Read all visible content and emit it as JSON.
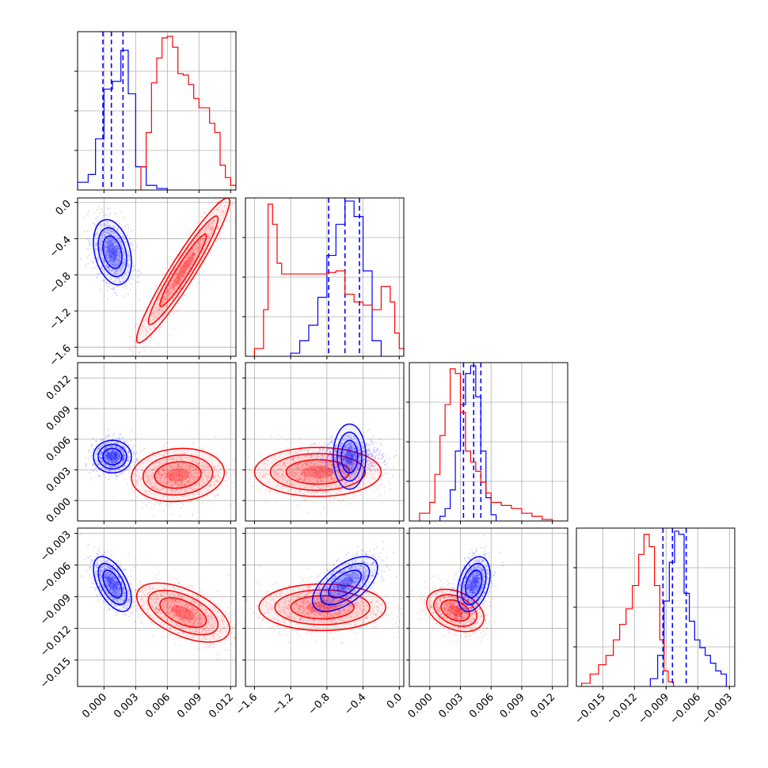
{
  "chart_data": {
    "type": "corner",
    "colors": {
      "series_a": "#0000ff",
      "series_b": "#ff0000"
    },
    "grid": true,
    "params": [
      {
        "range": [
          -0.0025,
          0.0125
        ],
        "ticks": [
          0.0,
          0.003,
          0.006,
          0.009,
          0.012
        ],
        "tick_labels": [
          "0.000",
          "0.003",
          "0.006",
          "0.009",
          "0.012"
        ]
      },
      {
        "range": [
          -1.7,
          0.05
        ],
        "ticks": [
          -1.6,
          -1.2,
          -0.8,
          -0.4,
          0.0
        ],
        "tick_labels": [
          "−1.6",
          "−1.2",
          "−0.8",
          "−0.4",
          "0.0"
        ]
      },
      {
        "range": [
          -0.002,
          0.0135
        ],
        "ticks": [
          0.0,
          0.003,
          0.006,
          0.009,
          0.012
        ],
        "tick_labels": [
          "0.000",
          "0.003",
          "0.006",
          "0.009",
          "0.012"
        ]
      },
      {
        "range": [
          -0.0175,
          -0.0025
        ],
        "ticks": [
          -0.015,
          -0.012,
          -0.009,
          -0.006,
          -0.003
        ],
        "tick_labels": [
          "−0.015",
          "−0.012",
          "−0.009",
          "−0.006",
          "−0.003"
        ]
      }
    ],
    "series": [
      {
        "color": "#0000ff",
        "quantiles": [
          [
            -0.0001,
            0.0007,
            0.0018
          ],
          [
            -0.78,
            -0.6,
            -0.44
          ],
          [
            0.0033,
            0.0043,
            0.005
          ],
          [
            -0.0093,
            -0.0084,
            -0.0071
          ]
        ],
        "hist_1d": [
          {
            "edges": [
              -0.0025,
              -0.0015,
              -0.0008,
              0.0,
              0.0008,
              0.0016,
              0.0023,
              0.003,
              0.004,
              0.005,
              0.006
            ],
            "counts": [
              5,
              10,
              33,
              65,
              70,
              90,
              62,
              15,
              3,
              1
            ]
          },
          {
            "edges": [
              -1.2,
              -1.1,
              -1.0,
              -0.9,
              -0.8,
              -0.7,
              -0.6,
              -0.5,
              -0.4,
              -0.3,
              -0.2
            ],
            "counts": [
              2,
              10,
              20,
              38,
              65,
              85,
              100,
              90,
              55,
              10
            ]
          },
          {
            "edges": [
              0.001,
              0.0015,
              0.002,
              0.0025,
              0.003,
              0.0035,
              0.004,
              0.0045,
              0.005,
              0.0055,
              0.006,
              0.0065
            ],
            "counts": [
              3,
              8,
              20,
              45,
              75,
              95,
              100,
              80,
              45,
              15,
              4
            ]
          },
          {
            "edges": [
              -0.0105,
              -0.0098,
              -0.0092,
              -0.0087,
              -0.0082,
              -0.0078,
              -0.0073,
              -0.0068,
              -0.0063,
              -0.0058,
              -0.0053,
              -0.0048,
              -0.0043,
              -0.0038,
              -0.0033
            ],
            "counts": [
              5,
              20,
              55,
              80,
              100,
              98,
              60,
              42,
              30,
              25,
              20,
              15,
              10,
              8
            ]
          }
        ],
        "hist_1d_ymax": [
          100,
          100,
          100,
          100
        ],
        "clouds_2d": [
          {
            "p": [
              0,
              1
            ],
            "center": [
              0.0008,
              -0.55
            ],
            "sd": [
              0.0009,
              0.18
            ],
            "rho": -0.3
          },
          {
            "p": [
              0,
              2
            ],
            "center": [
              0.0008,
              0.0043
            ],
            "sd": [
              0.0009,
              0.0008
            ],
            "rho": 0.0
          },
          {
            "p": [
              0,
              3
            ],
            "center": [
              0.0008,
              -0.0078
            ],
            "sd": [
              0.0009,
              0.0013
            ],
            "rho": -0.55
          },
          {
            "p": [
              1,
              2
            ],
            "center": [
              -0.55,
              0.0043
            ],
            "sd": [
              0.18,
              0.0008
            ],
            "rho": 0.0
          },
          {
            "p": [
              1,
              3
            ],
            "center": [
              -0.6,
              -0.0078
            ],
            "sd": [
              0.18,
              0.0013
            ],
            "rho": 0.6
          },
          {
            "p": [
              2,
              3
            ],
            "center": [
              0.0043,
              -0.0078
            ],
            "sd": [
              0.0008,
              0.0013
            ],
            "rho": 0.35
          }
        ]
      },
      {
        "color": "#ff0000",
        "quantiles": [],
        "hist_1d": [
          {
            "edges": [
              0.0035,
              0.004,
              0.0045,
              0.005,
              0.0055,
              0.006,
              0.0065,
              0.007,
              0.0075,
              0.008,
              0.0085,
              0.009,
              0.0095,
              0.01,
              0.0105,
              0.011,
              0.0115,
              0.012,
              0.0125
            ],
            "counts": [
              15,
              37,
              69,
              85,
              98,
              99,
              92,
              75,
              74,
              68,
              59,
              53,
              53,
              43,
              37,
              16,
              8,
              3
            ]
          },
          {
            "edges": [
              -1.6,
              -1.5,
              -1.45,
              -1.4,
              -1.35,
              -1.3,
              -1.2,
              -1.1,
              -1.0,
              -0.9,
              -0.8,
              -0.7,
              -0.6,
              -0.5,
              -0.4,
              -0.3,
              -0.25,
              -0.2,
              -0.15,
              -0.1,
              -0.05,
              0.0,
              0.05
            ],
            "counts": [
              5,
              30,
              98,
              85,
              60,
              53,
              53,
              53,
              53,
              53,
              54,
              55,
              40,
              35,
              33,
              30,
              30,
              45,
              45,
              35,
              15,
              5
            ]
          },
          {
            "edges": [
              -0.001,
              0.0,
              0.0005,
              0.001,
              0.0015,
              0.002,
              0.0025,
              0.003,
              0.0035,
              0.004,
              0.0045,
              0.005,
              0.0055,
              0.006,
              0.007,
              0.008,
              0.009,
              0.01,
              0.011,
              0.012
            ],
            "counts": [
              5,
              12,
              30,
              55,
              75,
              98,
              95,
              70,
              45,
              38,
              32,
              25,
              18,
              12,
              10,
              8,
              5,
              3,
              1
            ]
          },
          {
            "edges": [
              -0.017,
              -0.0162,
              -0.0154,
              -0.0147,
              -0.014,
              -0.0134,
              -0.0128,
              -0.0122,
              -0.0116,
              -0.0111,
              -0.0106,
              -0.0101,
              -0.0096,
              -0.0092,
              -0.0088,
              -0.0083
            ],
            "counts": [
              2,
              8,
              14,
              20,
              30,
              40,
              50,
              65,
              85,
              98,
              90,
              65,
              30,
              10,
              3
            ]
          }
        ],
        "hist_1d_ymax": [
          100,
          100,
          100,
          100
        ],
        "clouds_2d": [
          {
            "p": [
              0,
              1
            ],
            "center": [
              0.0075,
              -0.75
            ],
            "sd": [
              0.0022,
              0.4
            ],
            "rho": 0.95
          },
          {
            "p": [
              0,
              2
            ],
            "center": [
              0.007,
              0.0025
            ],
            "sd": [
              0.0022,
              0.0013
            ],
            "rho": 0.1
          },
          {
            "p": [
              0,
              3
            ],
            "center": [
              0.0075,
              -0.0105
            ],
            "sd": [
              0.0022,
              0.0014
            ],
            "rho": -0.55
          },
          {
            "p": [
              1,
              2
            ],
            "center": [
              -0.9,
              0.0028
            ],
            "sd": [
              0.35,
              0.0012
            ],
            "rho": 0.0
          },
          {
            "p": [
              1,
              3
            ],
            "center": [
              -0.85,
              -0.01
            ],
            "sd": [
              0.35,
              0.0011
            ],
            "rho": 0.0
          },
          {
            "p": [
              2,
              3
            ],
            "center": [
              0.0025,
              -0.0103
            ],
            "sd": [
              0.0014,
              0.001
            ],
            "rho": -0.35
          }
        ]
      }
    ]
  }
}
